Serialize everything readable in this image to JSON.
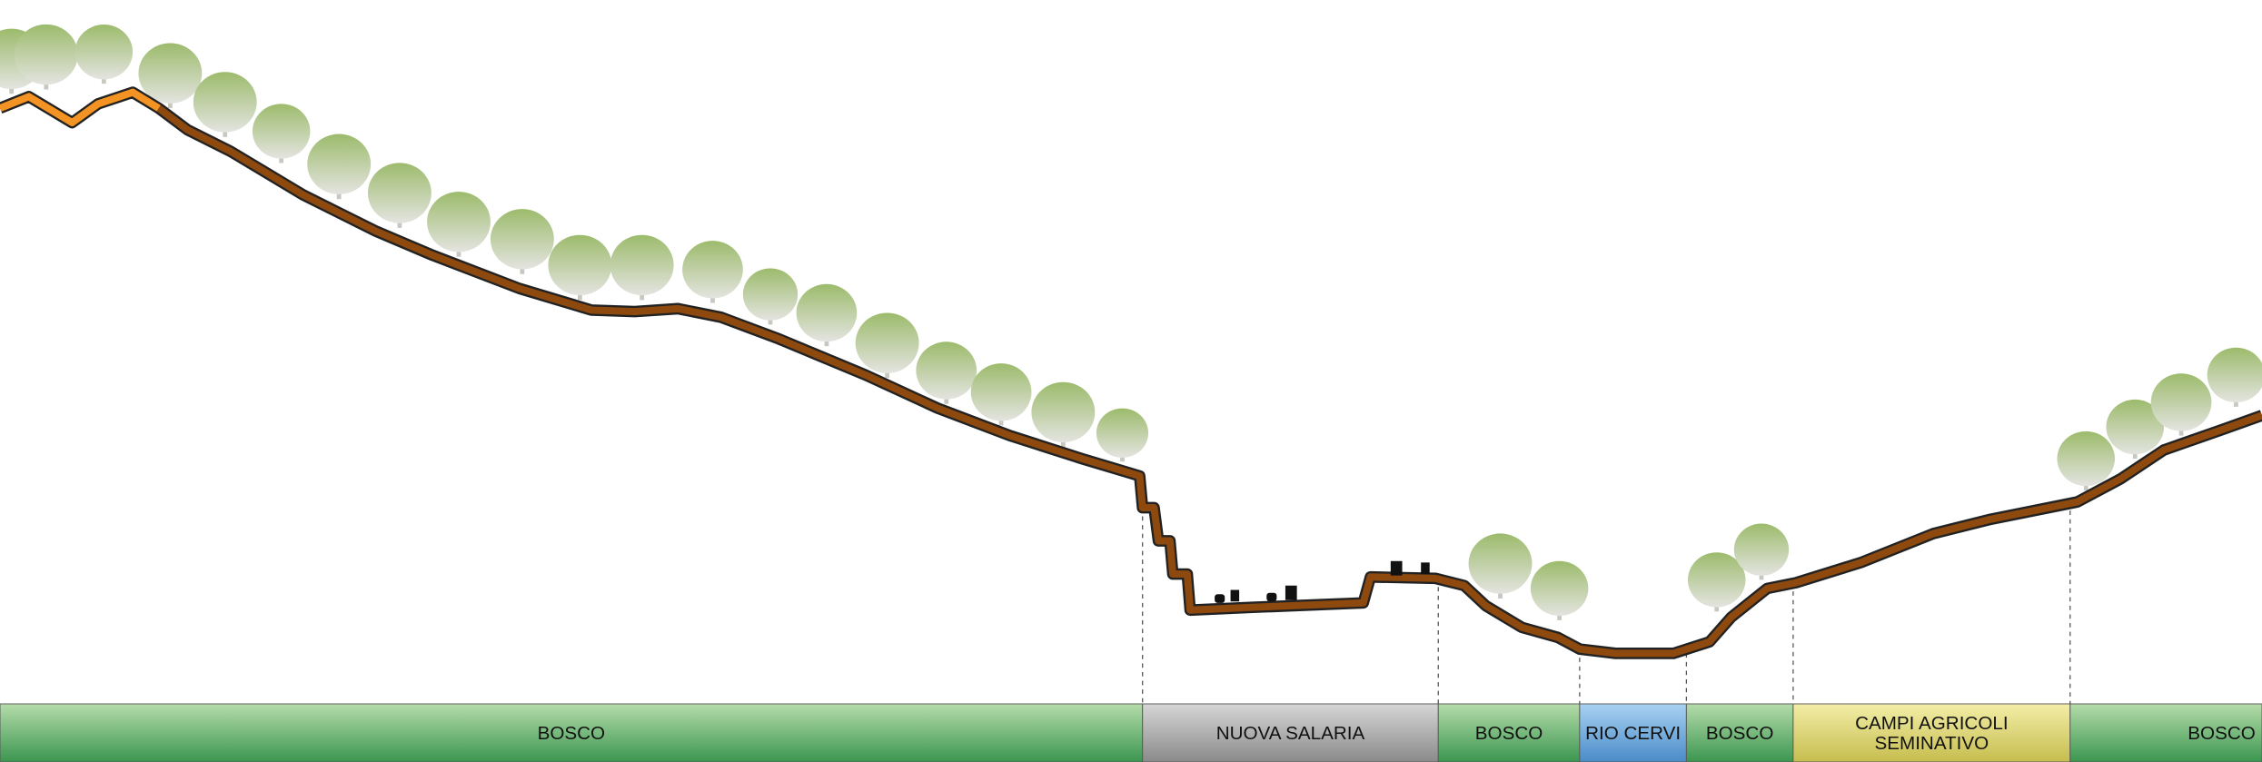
{
  "bands": [
    {
      "lines": [
        "BOSCO"
      ]
    },
    {
      "lines": [
        "NUOVA SALARIA"
      ]
    },
    {
      "lines": [
        "BOSCO"
      ]
    },
    {
      "lines": [
        "RIO CERVI"
      ]
    },
    {
      "lines": [
        "BOSCO"
      ]
    },
    {
      "lines": [
        "CAMPI AGRICOLI",
        "SEMINATIVO"
      ]
    },
    {
      "lines": [
        "BOSCO"
      ]
    }
  ]
}
